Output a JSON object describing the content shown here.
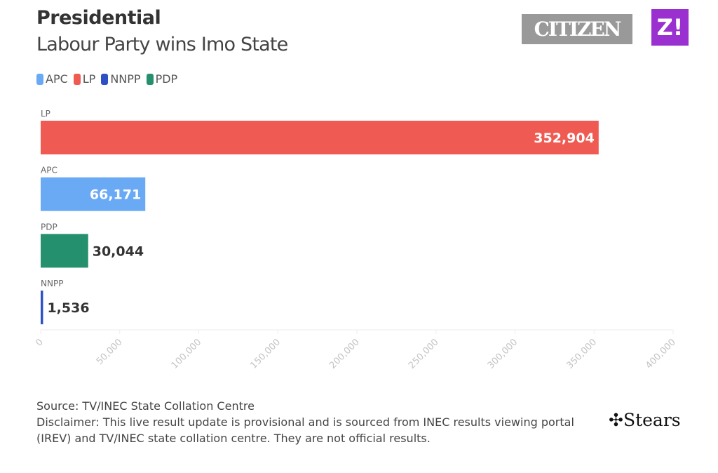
{
  "header": {
    "title": "Presidential",
    "subtitle": "Labour Party wins Imo State"
  },
  "logos": {
    "citizen": "CITIZEN",
    "z": "Z!",
    "stears": "Stears"
  },
  "legend": [
    {
      "label": "APC",
      "color": "#6aaaf5"
    },
    {
      "label": "LP",
      "color": "#ef5b52"
    },
    {
      "label": "NNPP",
      "color": "#2f4fc4"
    },
    {
      "label": "PDP",
      "color": "#25906e"
    }
  ],
  "chart_data": {
    "type": "bar",
    "orientation": "horizontal",
    "categories": [
      "LP",
      "APC",
      "PDP",
      "NNPP"
    ],
    "values": [
      352904,
      66171,
      30044,
      1536
    ],
    "data_labels": [
      "352,904",
      "66,171",
      "30,044",
      "1,536"
    ],
    "colors": [
      "#ef5b52",
      "#6aaaf5",
      "#25906e",
      "#2f4fc4"
    ],
    "xlim": [
      0,
      400000
    ],
    "xticks": [
      0,
      50000,
      100000,
      150000,
      200000,
      250000,
      300000,
      350000,
      400000
    ],
    "xtick_labels": [
      "0",
      "50,000",
      "100,000",
      "150,000",
      "200,000",
      "250,000",
      "300,000",
      "350,000",
      "400,000"
    ],
    "grid": false
  },
  "footer": {
    "source": "Source: TV/INEC State Collation Centre",
    "disclaimer": "Disclaimer: This live result update is provisional and is sourced from INEC results viewing portal (IREV) and TV/INEC state collation centre. They are not official results."
  }
}
